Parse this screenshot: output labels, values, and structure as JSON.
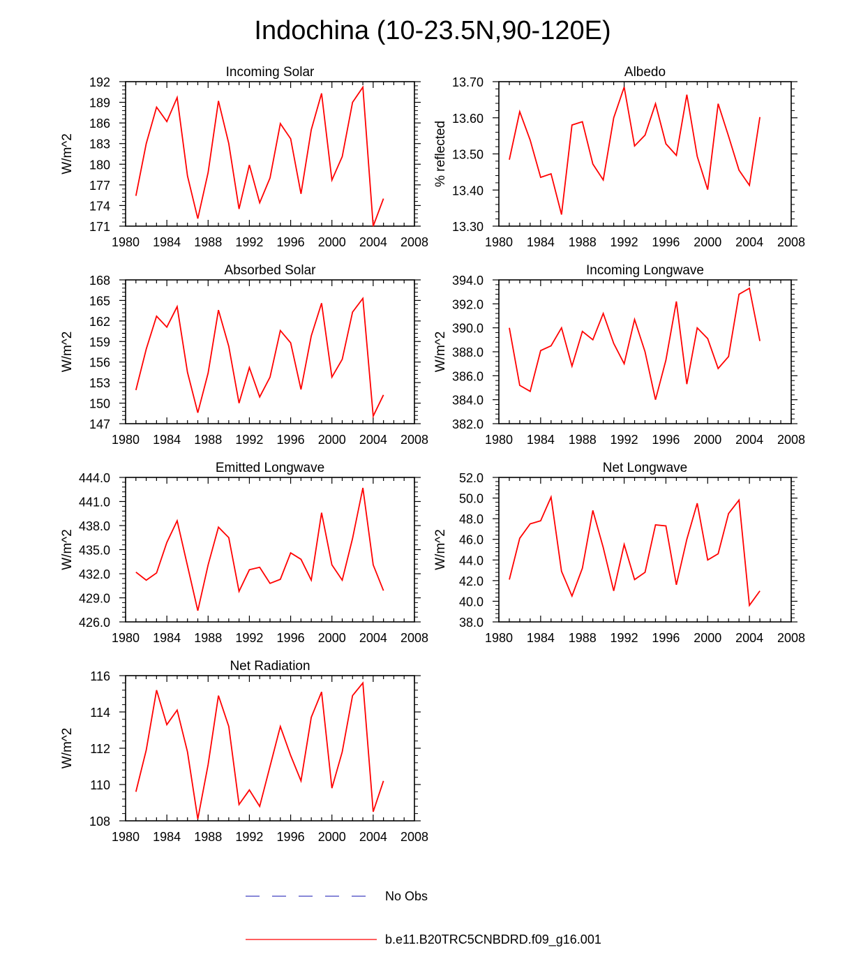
{
  "figure": {
    "title": "Indochina (10-23.5N,90-120E)"
  },
  "legend": {
    "items": [
      {
        "label": "No Obs",
        "color": "#4040c0",
        "style": "dashed"
      },
      {
        "label": "b.e11.B20TRC5CNBDRD.f09_g16.001",
        "color": "#ff0000",
        "style": "solid"
      }
    ]
  },
  "chart_data": [
    {
      "type": "line",
      "title": "Incoming Solar",
      "ylabel": "W/m^2",
      "xlabel": "",
      "xlim": [
        1980,
        2008
      ],
      "ylim": [
        171,
        192
      ],
      "xticks": [
        1980,
        1984,
        1988,
        1992,
        1996,
        2000,
        2004,
        2008
      ],
      "yticks": [
        "171",
        "174",
        "177",
        "180",
        "183",
        "186",
        "189",
        "192"
      ],
      "x": [
        1981,
        1982,
        1983,
        1984,
        1985,
        1986,
        1987,
        1988,
        1989,
        1990,
        1991,
        1992,
        1993,
        1994,
        1995,
        1996,
        1997,
        1998,
        1999,
        2000,
        2001,
        2002,
        2003,
        2004,
        2005
      ],
      "series": [
        {
          "name": "b.e11.B20TRC5CNBDRD.f09_g16.001",
          "color": "#ff0000",
          "values": [
            175.4,
            183.0,
            188.3,
            186.2,
            189.7,
            178.3,
            172.1,
            178.8,
            189.2,
            183.0,
            173.5,
            179.9,
            174.4,
            178.0,
            185.9,
            183.7,
            175.7,
            185.0,
            190.3,
            177.7,
            181.1,
            189.0,
            191.2,
            171.0,
            175.0
          ]
        }
      ]
    },
    {
      "type": "line",
      "title": "Albedo",
      "ylabel": "% reflected",
      "xlabel": "",
      "xlim": [
        1980,
        2008
      ],
      "ylim": [
        13.3,
        13.7
      ],
      "xticks": [
        1980,
        1984,
        1988,
        1992,
        1996,
        2000,
        2004,
        2008
      ],
      "yticks": [
        "13.30",
        "13.40",
        "13.50",
        "13.60",
        "13.70"
      ],
      "x": [
        1981,
        1982,
        1983,
        1984,
        1985,
        1986,
        1987,
        1988,
        1989,
        1990,
        1991,
        1992,
        1993,
        1994,
        1995,
        1996,
        1997,
        1998,
        1999,
        2000,
        2001,
        2002,
        2003,
        2004,
        2005
      ],
      "series": [
        {
          "name": "b.e11.B20TRC5CNBDRD.f09_g16.001",
          "color": "#ff0000",
          "values": [
            13.484,
            13.617,
            13.538,
            13.435,
            13.445,
            13.332,
            13.58,
            13.589,
            13.472,
            13.428,
            13.6,
            13.685,
            13.522,
            13.552,
            13.639,
            13.528,
            13.496,
            13.664,
            13.493,
            13.401,
            13.639,
            13.549,
            13.455,
            13.413,
            13.602
          ]
        }
      ]
    },
    {
      "type": "line",
      "title": "Absorbed Solar",
      "ylabel": "W/m^2",
      "xlabel": "",
      "xlim": [
        1980,
        2008
      ],
      "ylim": [
        147,
        168
      ],
      "xticks": [
        1980,
        1984,
        1988,
        1992,
        1996,
        2000,
        2004,
        2008
      ],
      "yticks": [
        "147",
        "150",
        "153",
        "156",
        "159",
        "162",
        "165",
        "168"
      ],
      "x": [
        1981,
        1982,
        1983,
        1984,
        1985,
        1986,
        1987,
        1988,
        1989,
        1990,
        1991,
        1992,
        1993,
        1994,
        1995,
        1996,
        1997,
        1998,
        1999,
        2000,
        2001,
        2002,
        2003,
        2004,
        2005
      ],
      "series": [
        {
          "name": "b.e11.B20TRC5CNBDRD.f09_g16.001",
          "color": "#ff0000",
          "values": [
            151.9,
            157.9,
            162.7,
            161.1,
            164.1,
            154.5,
            148.6,
            154.4,
            163.6,
            158.3,
            150.0,
            155.2,
            150.9,
            153.8,
            160.6,
            158.8,
            152.0,
            159.8,
            164.6,
            153.8,
            156.4,
            163.3,
            165.3,
            148.1,
            151.2
          ]
        }
      ]
    },
    {
      "type": "line",
      "title": "Incoming Longwave",
      "ylabel": "W/m^2",
      "xlabel": "",
      "xlim": [
        1980,
        2008
      ],
      "ylim": [
        382.0,
        394.0
      ],
      "xticks": [
        1980,
        1984,
        1988,
        1992,
        1996,
        2000,
        2004,
        2008
      ],
      "yticks": [
        "382.0",
        "384.0",
        "386.0",
        "388.0",
        "390.0",
        "392.0",
        "394.0"
      ],
      "x": [
        1981,
        1982,
        1983,
        1984,
        1985,
        1986,
        1987,
        1988,
        1989,
        1990,
        1991,
        1992,
        1993,
        1994,
        1995,
        1996,
        1997,
        1998,
        1999,
        2000,
        2001,
        2002,
        2003,
        2004,
        2005
      ],
      "series": [
        {
          "name": "b.e11.B20TRC5CNBDRD.f09_g16.001",
          "color": "#ff0000",
          "values": [
            390.0,
            385.2,
            384.7,
            388.1,
            388.5,
            390.0,
            386.8,
            389.7,
            389.0,
            391.2,
            388.7,
            387.0,
            390.7,
            388.0,
            384.0,
            387.3,
            392.2,
            385.3,
            390.0,
            389.1,
            386.6,
            387.6,
            392.8,
            393.3,
            388.9
          ]
        }
      ]
    },
    {
      "type": "line",
      "title": "Emitted Longwave",
      "ylabel": "W/m^2",
      "xlabel": "",
      "xlim": [
        1980,
        2008
      ],
      "ylim": [
        426.0,
        444.0
      ],
      "xticks": [
        1980,
        1984,
        1988,
        1992,
        1996,
        2000,
        2004,
        2008
      ],
      "yticks": [
        "426.0",
        "429.0",
        "432.0",
        "435.0",
        "438.0",
        "441.0",
        "444.0"
      ],
      "x": [
        1981,
        1982,
        1983,
        1984,
        1985,
        1986,
        1987,
        1988,
        1989,
        1990,
        1991,
        1992,
        1993,
        1994,
        1995,
        1996,
        1997,
        1998,
        1999,
        2000,
        2001,
        2002,
        2003,
        2004,
        2005
      ],
      "series": [
        {
          "name": "b.e11.B20TRC5CNBDRD.f09_g16.001",
          "color": "#ff0000",
          "values": [
            432.2,
            431.2,
            432.1,
            435.9,
            438.6,
            433.0,
            427.4,
            433.1,
            437.8,
            436.5,
            429.8,
            432.5,
            432.8,
            430.8,
            431.3,
            434.6,
            433.8,
            431.2,
            439.6,
            433.1,
            431.2,
            436.4,
            442.7,
            433.1,
            429.9
          ]
        }
      ]
    },
    {
      "type": "line",
      "title": "Net Longwave",
      "ylabel": "W/m^2",
      "xlabel": "",
      "xlim": [
        1980,
        2008
      ],
      "ylim": [
        38.0,
        52.0
      ],
      "xticks": [
        1980,
        1984,
        1988,
        1992,
        1996,
        2000,
        2004,
        2008
      ],
      "yticks": [
        "38.0",
        "40.0",
        "42.0",
        "44.0",
        "46.0",
        "48.0",
        "50.0",
        "52.0"
      ],
      "x": [
        1981,
        1982,
        1983,
        1984,
        1985,
        1986,
        1987,
        1988,
        1989,
        1990,
        1991,
        1992,
        1993,
        1994,
        1995,
        1996,
        1997,
        1998,
        1999,
        2000,
        2001,
        2002,
        2003,
        2004,
        2005
      ],
      "series": [
        {
          "name": "b.e11.B20TRC5CNBDRD.f09_g16.001",
          "color": "#ff0000",
          "values": [
            42.1,
            46.1,
            47.5,
            47.8,
            50.1,
            42.9,
            40.5,
            43.2,
            48.8,
            45.2,
            41.0,
            45.5,
            42.1,
            42.8,
            47.4,
            47.3,
            41.6,
            46.0,
            49.5,
            44.0,
            44.6,
            48.5,
            49.8,
            39.6,
            41.0
          ]
        }
      ]
    },
    {
      "type": "line",
      "title": "Net Radiation",
      "ylabel": "W/m^2",
      "xlabel": "",
      "xlim": [
        1980,
        2008
      ],
      "ylim": [
        108,
        116
      ],
      "xticks": [
        1980,
        1984,
        1988,
        1992,
        1996,
        2000,
        2004,
        2008
      ],
      "yticks": [
        "108",
        "110",
        "112",
        "114",
        "116"
      ],
      "x": [
        1981,
        1982,
        1983,
        1984,
        1985,
        1986,
        1987,
        1988,
        1989,
        1990,
        1991,
        1992,
        1993,
        1994,
        1995,
        1996,
        1997,
        1998,
        1999,
        2000,
        2001,
        2002,
        2003,
        2004,
        2005
      ],
      "series": [
        {
          "name": "b.e11.B20TRC5CNBDRD.f09_g16.001",
          "color": "#ff0000",
          "values": [
            109.6,
            111.9,
            115.2,
            113.3,
            114.1,
            111.8,
            108.1,
            111.1,
            114.9,
            113.2,
            108.9,
            109.7,
            108.8,
            111.0,
            113.2,
            111.6,
            110.2,
            113.7,
            115.1,
            109.8,
            111.8,
            114.9,
            115.6,
            108.5,
            110.2
          ]
        }
      ]
    }
  ]
}
